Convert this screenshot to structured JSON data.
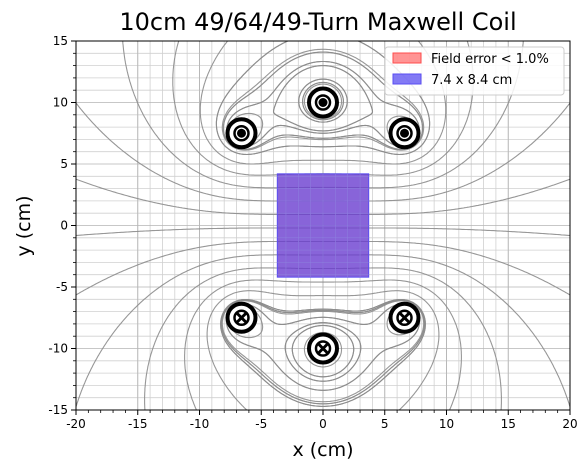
{
  "chart_data": {
    "type": "contour",
    "title": "10cm 49/64/49-Turn Maxwell Coil",
    "xlabel": "x (cm)",
    "ylabel": "y (cm)",
    "xlim": [
      -20,
      20
    ],
    "ylim": [
      -15,
      15
    ],
    "xticks": [
      "-20",
      "-15",
      "-10",
      "-5",
      "0",
      "5",
      "10",
      "15",
      "20"
    ],
    "yticks": [
      "-15",
      "-10",
      "-5",
      "0",
      "5",
      "10",
      "15"
    ],
    "grid": true,
    "legend_position": "top-right",
    "legend": [
      {
        "label": "Field error < 1.0%",
        "color": "#ff4d4d"
      },
      {
        "label": "7.4 x 8.4 cm",
        "color": "#5a4df2"
      }
    ],
    "colors": {
      "field_lines": "#8c8c8c",
      "error_region": "#f07070",
      "box": "#6a3dd0",
      "coil": "#000000"
    },
    "uniform_box": {
      "width": 7.4,
      "height": 8.4,
      "center": [
        0,
        0
      ]
    },
    "coils": [
      {
        "x": -6.6,
        "y": 7.5,
        "direction": "out"
      },
      {
        "x": 0,
        "y": 10,
        "direction": "out"
      },
      {
        "x": 6.6,
        "y": 7.5,
        "direction": "out"
      },
      {
        "x": -6.6,
        "y": -7.5,
        "direction": "in"
      },
      {
        "x": 0,
        "y": -10,
        "direction": "in"
      },
      {
        "x": 6.6,
        "y": -7.5,
        "direction": "in"
      }
    ]
  }
}
